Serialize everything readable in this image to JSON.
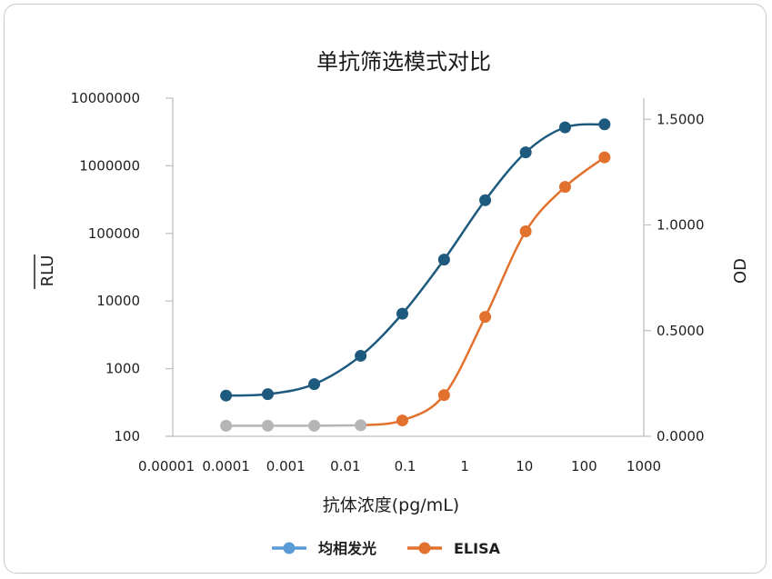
{
  "chart_data": {
    "type": "line",
    "title": "单抗筛选模式对比",
    "xlabel": "抗体浓度(pg/mL)",
    "ylabel": "RLU",
    "y2label": "OD",
    "x_scale": "log",
    "xlim": [
      1e-05,
      1000
    ],
    "x_ticks": [
      "0.00001",
      "0.0001",
      "0.001",
      "0.01",
      "0.1",
      "1",
      "10",
      "100",
      "1000"
    ],
    "y_scale": "log",
    "ylim": [
      100,
      10000000
    ],
    "y_ticks": [
      "10000000",
      "1000000",
      "100000",
      "10000",
      "1000",
      "100"
    ],
    "y2lim": [
      0,
      1.6
    ],
    "y2_ticks": [
      "1.5000",
      "1.0000",
      "0.5000",
      "0.0000"
    ],
    "grid": false,
    "legend_position": "bottom",
    "series": [
      {
        "name": "均相发光",
        "axis": "left",
        "color": "#1d5a7d",
        "legend_color": "#5b9bd5",
        "x": [
          0.0001,
          0.0005,
          0.003,
          0.018,
          0.09,
          0.45,
          2.2,
          10.5,
          48,
          220
        ],
        "y": [
          400,
          420,
          590,
          1550,
          6500,
          41000,
          310000,
          1580000,
          3700000,
          4100000
        ]
      },
      {
        "name": "ELISA",
        "axis": "right",
        "color": "#e3712e",
        "color_low": "#b5b5b5",
        "x": [
          0.0001,
          0.0005,
          0.003,
          0.018,
          0.09,
          0.45,
          2.2,
          10.5,
          48,
          220
        ],
        "y": [
          0.05,
          0.05,
          0.05,
          0.052,
          0.075,
          0.195,
          0.565,
          0.97,
          1.18,
          1.32
        ]
      }
    ]
  }
}
